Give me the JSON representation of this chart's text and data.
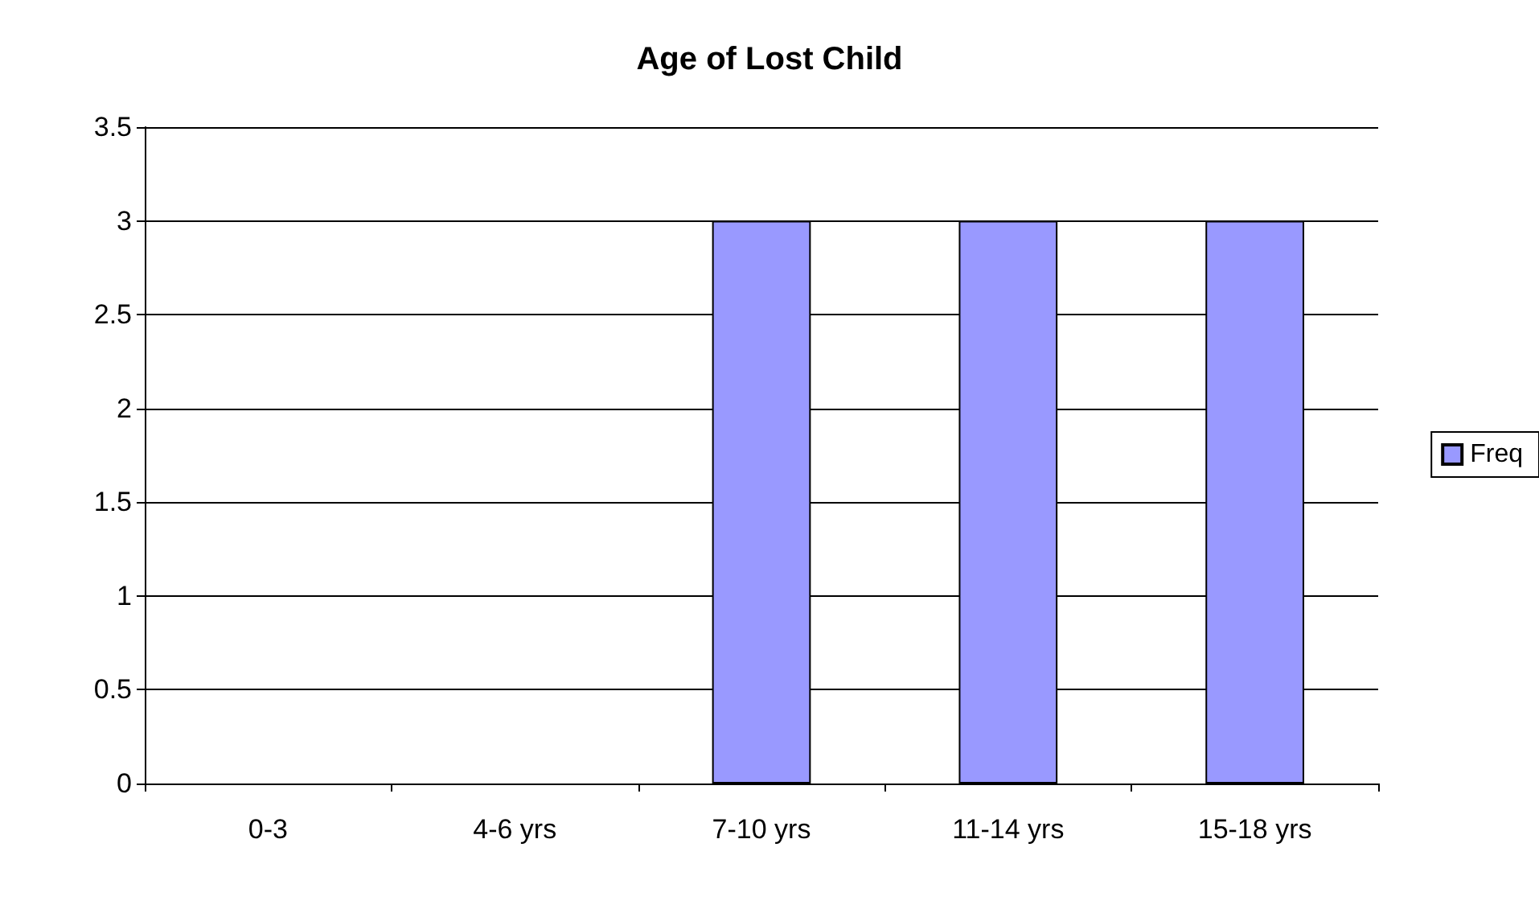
{
  "chart_data": {
    "type": "bar",
    "title": "Age of Lost Child",
    "categories": [
      "0-3",
      "4-6 yrs",
      "7-10 yrs",
      "11-14 yrs",
      "15-18 yrs"
    ],
    "series": [
      {
        "name": "Freq",
        "color": "#9999ff",
        "values": [
          0,
          0,
          3,
          3,
          3
        ]
      }
    ],
    "ylim": [
      0,
      3.5
    ],
    "yticks": [
      0,
      0.5,
      1,
      1.5,
      2,
      2.5,
      3,
      3.5
    ],
    "grid": "y",
    "legend": "right"
  }
}
